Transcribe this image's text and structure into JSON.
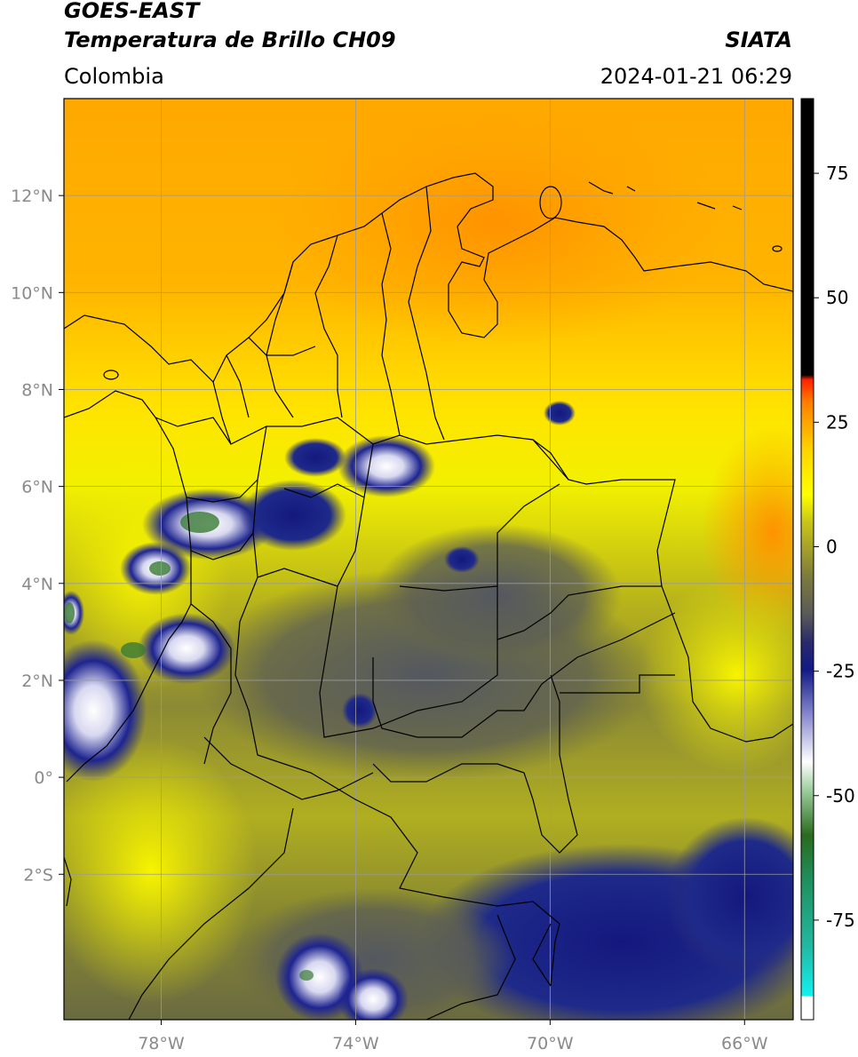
{
  "header": {
    "title_line1": "GOES-EAST",
    "title_line2": "Temperatura de Brillo CH09",
    "brand": "SIATA",
    "region": "Colombia",
    "timestamp": "2024-01-21 06:29"
  },
  "map": {
    "lon_range": [
      -80,
      -65
    ],
    "lat_range": [
      -5,
      14
    ],
    "lat_ticks": [
      {
        "value": 12,
        "label": "12°N"
      },
      {
        "value": 10,
        "label": "10°N"
      },
      {
        "value": 8,
        "label": "8°N"
      },
      {
        "value": 6,
        "label": "6°N"
      },
      {
        "value": 4,
        "label": "4°N"
      },
      {
        "value": 2,
        "label": "2°N"
      },
      {
        "value": 0,
        "label": "0°"
      },
      {
        "value": -2,
        "label": "2°S"
      }
    ],
    "lon_ticks": [
      {
        "value": -78,
        "label": "78°W"
      },
      {
        "value": -74,
        "label": "74°W"
      },
      {
        "value": -70,
        "label": "70°W"
      },
      {
        "value": -66,
        "label": "66°W"
      }
    ],
    "grid": true
  },
  "colorbar": {
    "range": [
      -95,
      90
    ],
    "ticks": [
      {
        "value": 75,
        "label": "75"
      },
      {
        "value": 50,
        "label": "50"
      },
      {
        "value": 25,
        "label": "25"
      },
      {
        "value": 0,
        "label": "0"
      },
      {
        "value": -25,
        "label": "-25"
      },
      {
        "value": -50,
        "label": "-50"
      },
      {
        "value": -75,
        "label": "-75"
      }
    ],
    "colors": [
      "#ffffff",
      "#22e0e0",
      "#1f9a70",
      "#2e7a22",
      "#ffffff",
      "#1a1e8c",
      "#555555",
      "#8a8a2a",
      "#ffff00",
      "#ff8c00",
      "#ff0000",
      "#000000"
    ]
  }
}
